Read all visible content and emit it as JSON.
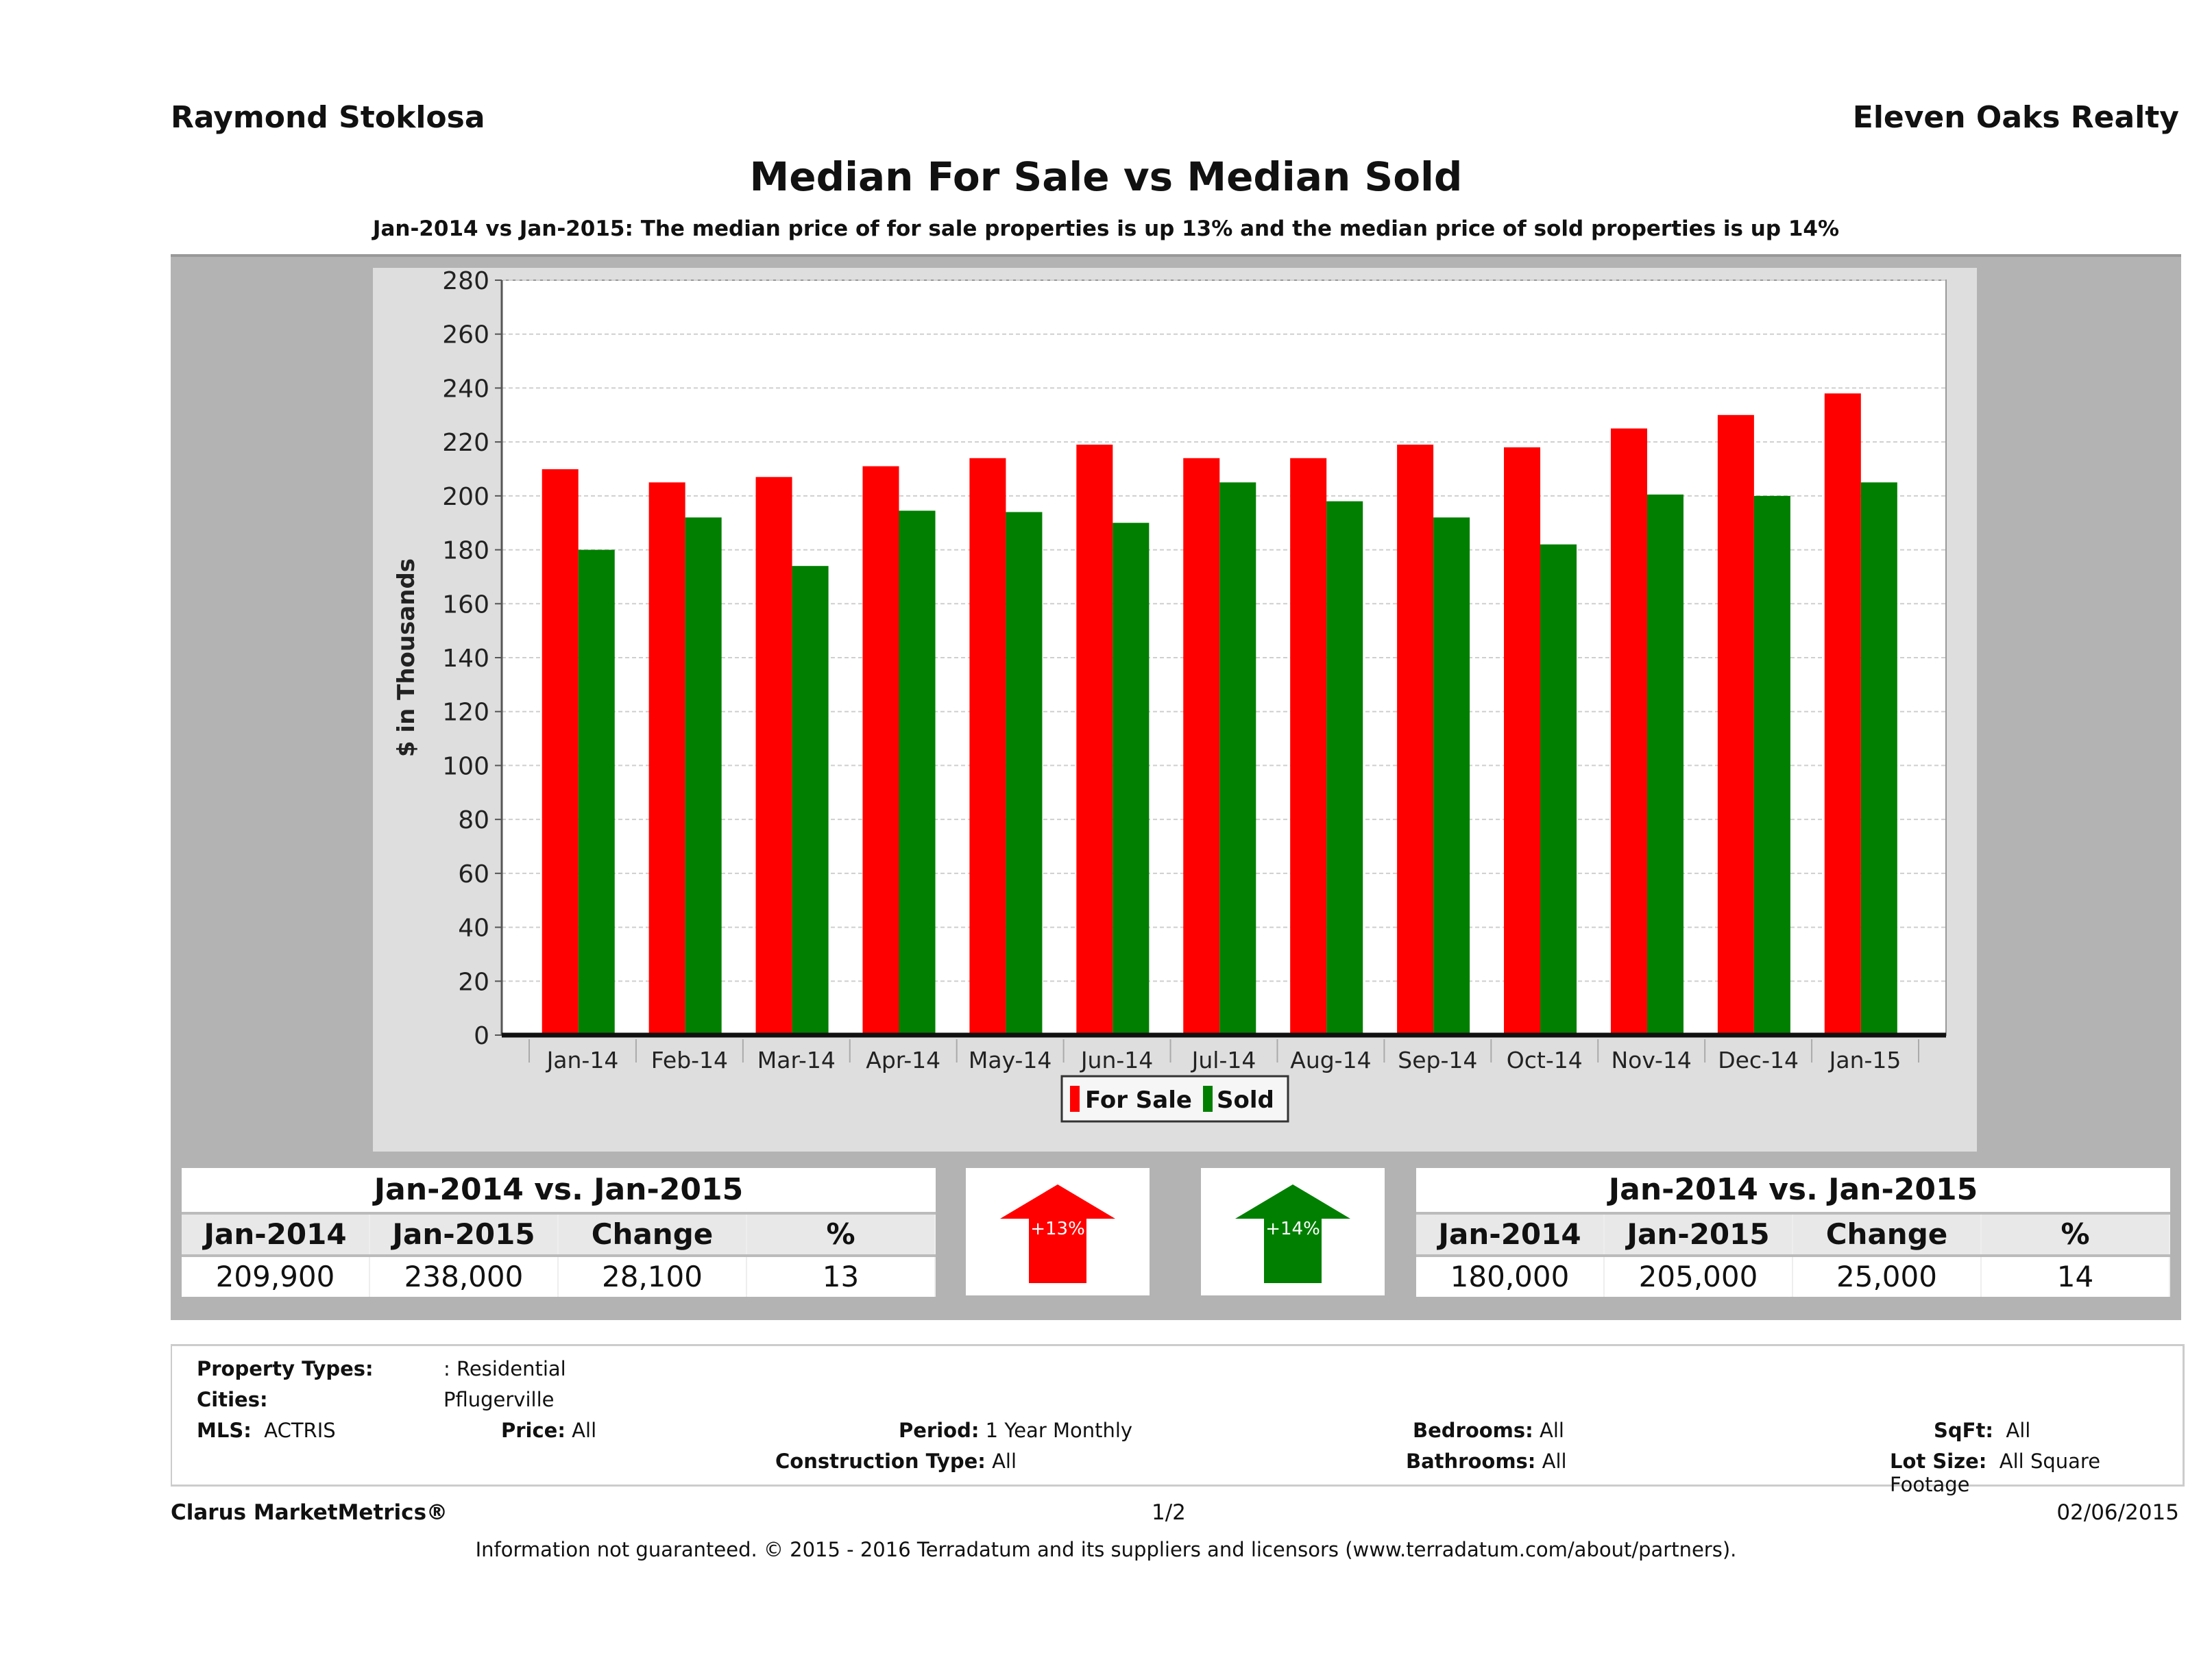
{
  "header": {
    "agent_name": "Raymond Stoklosa",
    "company": "Eleven Oaks Realty",
    "title": "Median For Sale vs Median Sold",
    "subtitle": "Jan-2014 vs Jan-2015: The median price of for sale properties is up 13% and the median price of sold properties is up 14%"
  },
  "colors": {
    "for_sale": "#ff0000",
    "sold": "#007f00"
  },
  "chart_data": {
    "type": "bar",
    "title": "Median For Sale vs Median Sold",
    "xlabel": "",
    "ylabel": "$ in Thousands",
    "ylim": [
      0,
      280
    ],
    "yticks": [
      0,
      20,
      40,
      60,
      80,
      100,
      120,
      140,
      160,
      180,
      200,
      220,
      240,
      260,
      280
    ],
    "grid": true,
    "legend_position": "bottom-center",
    "categories": [
      "Jan-14",
      "Feb-14",
      "Mar-14",
      "Apr-14",
      "May-14",
      "Jun-14",
      "Jul-14",
      "Aug-14",
      "Sep-14",
      "Oct-14",
      "Nov-14",
      "Dec-14",
      "Jan-15"
    ],
    "series": [
      {
        "name": "For Sale",
        "color": "#ff0000",
        "values": [
          209.9,
          205,
          207,
          211,
          214,
          219,
          214,
          214,
          219,
          218,
          225,
          230,
          238
        ]
      },
      {
        "name": "Sold",
        "color": "#007f00",
        "values": [
          180,
          192,
          174,
          194.5,
          194,
          190,
          205,
          198,
          192,
          182,
          200.5,
          200,
          205
        ]
      }
    ]
  },
  "legend": {
    "for_sale": "For Sale",
    "sold": "Sold"
  },
  "stats_for_sale": {
    "caption": "Jan-2014 vs. Jan-2015",
    "headers": [
      "Jan-2014",
      "Jan-2015",
      "Change",
      "%"
    ],
    "values": [
      "209,900",
      "238,000",
      "28,100",
      "13"
    ]
  },
  "stats_sold": {
    "caption": "Jan-2014 vs. Jan-2015",
    "headers": [
      "Jan-2014",
      "Jan-2015",
      "Change",
      "%"
    ],
    "values": [
      "180,000",
      "205,000",
      "25,000",
      "14"
    ]
  },
  "arrows": {
    "for_sale": "+13%",
    "sold": "+14%"
  },
  "filters": {
    "property_types_label": "Property Types:",
    "property_types": ": Residential",
    "cities_label": "Cities:",
    "cities": "Pflugerville",
    "mls_label": "MLS:",
    "mls": "ACTRIS",
    "price_label": "Price:",
    "price": "All",
    "period_label": "Period:",
    "period": "1 Year Monthly",
    "bedrooms_label": "Bedrooms:",
    "bedrooms": "All",
    "sqft_label": "SqFt:",
    "sqft": "All",
    "construction_label": "Construction Type:",
    "construction": "All",
    "bathrooms_label": "Bathrooms:",
    "bathrooms": "All",
    "lot_size_label": "Lot Size:",
    "lot_size": "All Square Footage"
  },
  "footer": {
    "brand": "Clarus MarketMetrics®",
    "page": "1/2",
    "date": "02/06/2015",
    "disclaimer": "Information not guaranteed. © 2015 - 2016 Terradatum and its suppliers and licensors (www.terradatum.com/about/partners)."
  }
}
